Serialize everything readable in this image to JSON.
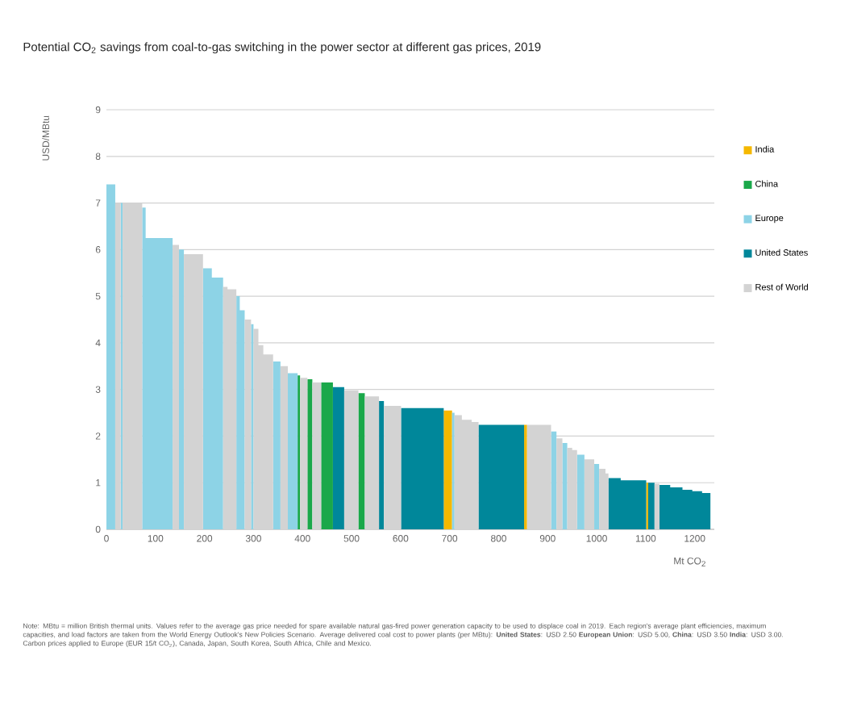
{
  "chart_data": {
    "type": "area",
    "title": "Potential CO$_{2}$ savings from coal-to-gas switching in the power sector at different gas prices, 2019",
    "xlabel": "Mt CO$_{2}$",
    "ylabel": "USD/MBtu",
    "xlim": [
      0,
      1240
    ],
    "ylim": [
      0,
      9
    ],
    "xticks": [
      0,
      100,
      200,
      300,
      400,
      500,
      600,
      700,
      800,
      900,
      1000,
      1100,
      1200
    ],
    "yticks": [
      0,
      1,
      2,
      3,
      4,
      5,
      6,
      7,
      8,
      9
    ],
    "grid": "y",
    "legend": "right",
    "series": [
      {
        "name": "India",
        "color": "#f5b800",
        "x": [
          688,
          705,
          852,
          858,
          1101,
          1105
        ],
        "values": [
          2.55,
          2.55,
          2.24,
          2.24,
          1.0,
          1.0
        ]
      },
      {
        "name": "China",
        "color": "#1aa84a",
        "x": [
          390,
          395,
          410,
          420,
          438,
          462,
          514,
          527
        ],
        "values": [
          3.3,
          3.3,
          3.22,
          3.22,
          3.15,
          3.15,
          2.92,
          2.92
        ]
      },
      {
        "name": "Europe",
        "color": "#8dd3e6",
        "x": [
          0,
          18,
          29,
          33,
          73,
          80,
          80,
          135,
          148,
          158,
          197,
          215,
          215,
          238,
          265,
          272,
          272,
          282,
          295,
          300,
          340,
          355,
          370,
          390,
          705,
          710,
          907,
          918,
          930,
          940,
          960,
          975,
          995,
          1005
        ],
        "values": [
          7.4,
          7.4,
          7.0,
          7.0,
          6.9,
          6.9,
          6.25,
          6.25,
          6.0,
          6.0,
          5.6,
          5.6,
          5.4,
          5.4,
          5.0,
          5.0,
          4.7,
          4.7,
          4.4,
          4.4,
          3.6,
          3.6,
          3.35,
          3.35,
          2.5,
          2.5,
          2.1,
          2.1,
          1.85,
          1.85,
          1.6,
          1.6,
          1.4,
          1.4
        ]
      },
      {
        "name": "United States",
        "color": "#00879a",
        "x": [
          462,
          485,
          556,
          566,
          601,
          688,
          759,
          852,
          1024,
          1049,
          1049,
          1101,
          1105,
          1118,
          1128,
          1150,
          1150,
          1175,
          1175,
          1195,
          1195,
          1215,
          1215,
          1232
        ],
        "values": [
          3.05,
          3.05,
          2.75,
          2.75,
          2.6,
          2.6,
          2.24,
          2.24,
          1.1,
          1.1,
          1.05,
          1.05,
          1.0,
          1.0,
          0.95,
          0.95,
          0.9,
          0.9,
          0.85,
          0.85,
          0.82,
          0.82,
          0.78,
          0.78
        ]
      },
      {
        "name": "Rest of World",
        "color": "#d3d3d3",
        "x": [
          18,
          29,
          33,
          73,
          135,
          148,
          158,
          197,
          238,
          247,
          247,
          265,
          282,
          295,
          300,
          310,
          310,
          320,
          320,
          340,
          355,
          370,
          395,
          410,
          420,
          438,
          485,
          514,
          527,
          556,
          566,
          601,
          710,
          725,
          725,
          745,
          745,
          759,
          858,
          907,
          918,
          930,
          940,
          950,
          950,
          960,
          975,
          995,
          1005,
          1018,
          1018,
          1024,
          1118,
          1128
        ],
        "values": [
          7.0,
          7.0,
          7.0,
          7.0,
          6.1,
          6.1,
          5.9,
          5.9,
          5.2,
          5.2,
          5.15,
          5.15,
          4.5,
          4.5,
          4.3,
          4.3,
          3.95,
          3.95,
          3.75,
          3.75,
          3.5,
          3.5,
          3.25,
          3.25,
          3.15,
          3.15,
          2.98,
          2.98,
          2.85,
          2.85,
          2.65,
          2.65,
          2.45,
          2.45,
          2.35,
          2.35,
          2.3,
          2.3,
          2.24,
          2.24,
          1.95,
          1.95,
          1.75,
          1.75,
          1.7,
          1.7,
          1.5,
          1.5,
          1.3,
          1.3,
          1.2,
          1.2,
          0.98,
          0.98
        ]
      }
    ],
    "annotations": [
      "Note: MBtu = million British thermal units. Values refer to the average gas price needed for spare available natural gas-fired power generation capacity to be used to displace coal in 2019. Each region's average plant efficiencies, maximum capacities, and load factors are taken from the World Energy Outlook's New Policies Scenario. Average delivered coal cost to power plants (per MBtu): **United States**: USD 2.50 **European Union**: USD 5.00, **China**: USD 3.50 **India**: USD 3.00. Carbon prices applied to Europe (EUR 15/t CO$_{2}$), Canada, Japan, South Korea, South Africa, Chile and Mexico."
    ]
  }
}
